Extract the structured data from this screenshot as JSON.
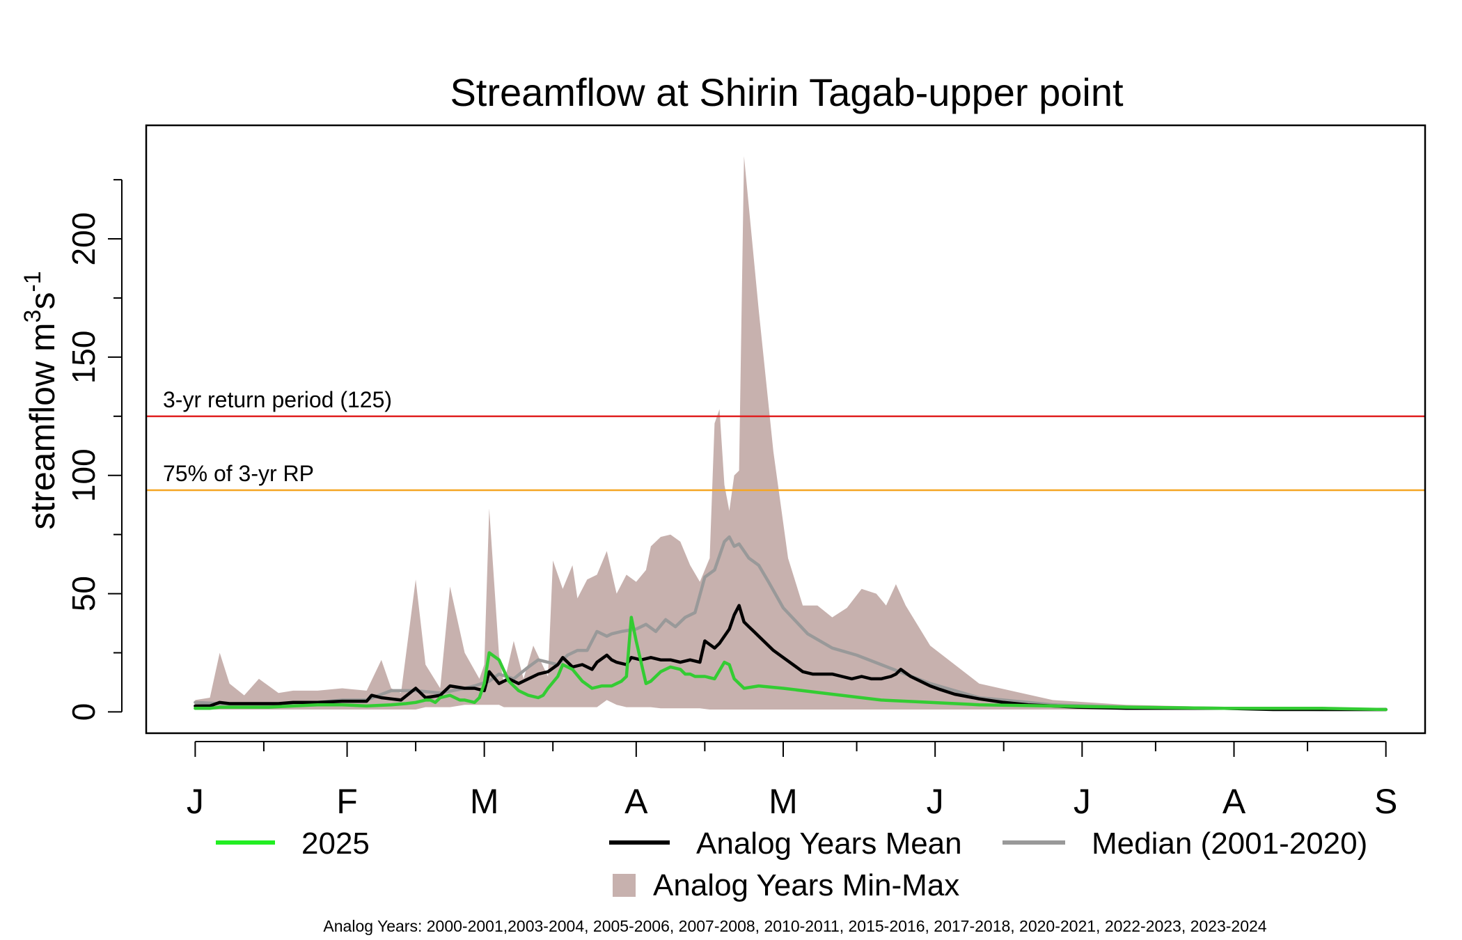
{
  "chart_data": {
    "type": "line",
    "title": "Streamflow at Shirin Tagab-upper point",
    "xlabel": "",
    "ylabel": "streamflow m",
    "ylabel_sup1": "3",
    "ylabel_mid": "s",
    "ylabel_sup2": "-1",
    "ylim": [
      -9,
      248
    ],
    "xlim": [
      -10,
      251
    ],
    "y_ticks": [
      0,
      50,
      100,
      150,
      200
    ],
    "y_tick_labels": [
      "0",
      "50",
      "100",
      "150",
      "200"
    ],
    "y_minor_ticks": [
      25,
      75,
      125,
      175,
      225
    ],
    "x_major_ticks": [
      {
        "day": 0,
        "label": "J"
      },
      {
        "day": 31,
        "label": "F"
      },
      {
        "day": 59,
        "label": "M"
      },
      {
        "day": 90,
        "label": "A"
      },
      {
        "day": 120,
        "label": "M"
      },
      {
        "day": 151,
        "label": "J"
      },
      {
        "day": 181,
        "label": "J"
      },
      {
        "day": 212,
        "label": "A"
      },
      {
        "day": 243,
        "label": "S"
      }
    ],
    "x_minor_ticks": [
      14,
      45,
      73,
      104,
      135,
      165,
      196,
      227
    ],
    "reference_lines": [
      {
        "name": "3-yr return period",
        "value": 125,
        "label": "3-yr return period (125)",
        "color": "#e02020"
      },
      {
        "name": "75% of 3-yr RP",
        "value": 93.75,
        "label": "75% of 3-yr RP",
        "color": "#f5a623"
      }
    ],
    "series": [
      {
        "name": "Analog Years Min-Max",
        "kind": "band",
        "color": "#c7b1ae",
        "x": [
          0,
          3,
          5,
          7,
          10,
          13,
          17,
          20,
          25,
          30,
          35,
          38,
          40,
          42,
          45,
          47,
          50,
          52,
          55,
          58,
          59,
          60,
          62,
          63,
          65,
          67,
          69,
          72,
          73,
          75,
          77,
          78,
          80,
          82,
          84,
          86,
          88,
          90,
          92,
          93,
          95,
          97,
          99,
          101,
          103,
          105,
          106,
          107,
          108,
          109,
          110,
          111,
          112,
          115,
          118,
          121,
          124,
          127,
          130,
          133,
          136,
          139,
          141,
          143,
          145,
          150,
          160,
          175,
          190,
          210,
          230,
          243
        ],
        "upper": [
          5,
          6,
          25,
          12,
          7,
          14,
          8,
          9,
          9,
          10,
          9,
          22,
          10,
          8,
          56,
          20,
          10,
          53,
          25,
          14,
          20,
          86,
          24,
          12,
          30,
          14,
          28,
          15,
          64,
          52,
          62,
          48,
          56,
          58,
          68,
          50,
          58,
          55,
          60,
          70,
          74,
          75,
          72,
          62,
          55,
          65,
          122,
          128,
          96,
          85,
          100,
          102,
          235,
          170,
          110,
          65,
          45,
          45,
          40,
          44,
          52,
          50,
          45,
          54,
          45,
          28,
          12,
          5,
          3,
          2,
          1.5,
          1
        ],
        "lower": [
          1,
          1,
          1,
          1,
          1,
          1,
          1,
          1,
          1,
          1,
          1,
          1,
          1,
          1,
          1,
          2,
          2,
          2,
          3,
          3,
          3,
          3,
          3,
          2,
          2,
          2,
          2,
          2,
          2,
          2,
          2,
          2,
          2,
          2,
          5,
          3,
          2,
          2,
          2,
          2,
          1.5,
          1.5,
          1.5,
          1.5,
          1.5,
          1,
          1,
          1,
          1,
          1,
          1,
          1,
          1,
          1,
          1,
          1,
          1,
          1,
          1,
          1,
          1,
          1,
          1,
          1,
          1,
          1,
          1,
          1,
          1,
          1,
          1,
          1
        ]
      },
      {
        "name": "Median (2001-2020)",
        "kind": "line",
        "color": "#999999",
        "x": [
          0,
          5,
          10,
          15,
          20,
          25,
          30,
          35,
          40,
          45,
          50,
          55,
          57,
          60,
          62,
          65,
          68,
          70,
          72,
          74,
          76,
          78,
          80,
          82,
          84,
          85,
          87,
          90,
          92,
          94,
          96,
          98,
          100,
          102,
          104,
          106,
          108,
          109,
          110,
          111,
          112,
          113,
          115,
          117,
          120,
          125,
          130,
          135,
          140,
          145,
          150,
          160,
          175,
          190,
          210,
          230,
          243
        ],
        "values": [
          4,
          3.5,
          3,
          3,
          3.5,
          4,
          5,
          5,
          9,
          9,
          8,
          10,
          11,
          13,
          16,
          14,
          19,
          22,
          21,
          20,
          24,
          26,
          26,
          34,
          32,
          33,
          34,
          35,
          37,
          34,
          39,
          36,
          40,
          42,
          57,
          60,
          72,
          74,
          70,
          71,
          68,
          65,
          62,
          55,
          44,
          33,
          27,
          24,
          20,
          16,
          12,
          6,
          3,
          2,
          1.5,
          1,
          1
        ]
      },
      {
        "name": "Analog Years Mean",
        "kind": "line",
        "color": "#000000",
        "x": [
          0,
          3,
          5,
          7,
          10,
          13,
          17,
          20,
          25,
          30,
          35,
          36,
          38,
          40,
          42,
          45,
          47,
          50,
          52,
          55,
          57,
          59,
          60,
          62,
          64,
          66,
          68,
          70,
          72,
          74,
          75,
          77,
          79,
          81,
          82,
          84,
          85,
          86,
          88,
          89,
          91,
          93,
          95,
          97,
          99,
          101,
          103,
          104,
          106,
          107,
          109,
          110,
          111,
          112,
          113,
          114,
          116,
          118,
          120,
          122,
          124,
          126,
          128,
          130,
          132,
          134,
          136,
          138,
          140,
          142,
          143,
          144,
          146,
          148,
          150,
          152,
          155,
          160,
          165,
          170,
          175,
          180,
          190,
          200,
          210,
          220,
          230,
          243
        ],
        "values": [
          2.5,
          2.5,
          4,
          3.5,
          3.5,
          3.5,
          3.5,
          4,
          4,
          4.5,
          4.5,
          7,
          6,
          5.5,
          5,
          10,
          6,
          7,
          11,
          10,
          10,
          9,
          17,
          12,
          14,
          12,
          14,
          16,
          17,
          20,
          23,
          19,
          20,
          18,
          21,
          24,
          22,
          21,
          20,
          23,
          22,
          23,
          22,
          22,
          21,
          22,
          21,
          30,
          27,
          29,
          35,
          41,
          45,
          38,
          36,
          34,
          30,
          26,
          23,
          20,
          17,
          16,
          16,
          16,
          15,
          14,
          15,
          14,
          14,
          15,
          16,
          18,
          15,
          13,
          11,
          9.5,
          7.5,
          5.5,
          4,
          3,
          2.5,
          2,
          1.5,
          1.5,
          1.5,
          1,
          1,
          1
        ]
      },
      {
        "name": "2025",
        "kind": "line",
        "color": "#33cc33",
        "legend_color": "#22ee22",
        "x": [
          0,
          3,
          5,
          10,
          15,
          20,
          25,
          30,
          35,
          40,
          43,
          45,
          47,
          48,
          49,
          50,
          52,
          54,
          55,
          57,
          58,
          59,
          60,
          62,
          64,
          66,
          68,
          70,
          71,
          72,
          74,
          75,
          77,
          79,
          81,
          83,
          85,
          86,
          87,
          88,
          89,
          90,
          92,
          93,
          95,
          97,
          99,
          100,
          101,
          102,
          104,
          106,
          108,
          109,
          110,
          112,
          115,
          120,
          130,
          140,
          150,
          160,
          175,
          190,
          210,
          230,
          243
        ],
        "values": [
          1.5,
          1.5,
          2,
          2,
          2,
          2.5,
          3,
          3,
          2.5,
          3,
          3.5,
          4,
          5,
          5,
          4,
          6,
          7,
          5,
          5,
          4,
          6,
          12,
          25,
          22,
          13,
          9,
          7,
          6,
          7,
          10,
          15,
          20,
          18,
          13,
          10,
          11,
          11,
          12,
          13,
          15,
          40,
          30,
          12,
          13,
          17,
          19,
          18,
          16,
          16,
          15,
          15,
          14,
          21,
          20,
          14,
          10,
          11,
          10,
          7.5,
          5,
          4,
          3,
          2.5,
          2,
          1.5,
          1.5,
          1
        ]
      }
    ],
    "legend": [
      {
        "name": "2025",
        "symbol": "line",
        "color": "#22ee22"
      },
      {
        "name": "Analog Years Mean",
        "symbol": "line",
        "color": "#000000"
      },
      {
        "name": "Median (2001-2020)",
        "symbol": "line",
        "color": "#999999"
      },
      {
        "name": "Analog Years Min-Max",
        "symbol": "box",
        "color": "#c7b1ae"
      }
    ],
    "footnote": "Analog Years: 2000-2001,2003-2004, 2005-2006, 2007-2008, 2010-2011, 2015-2016, 2017-2018, 2020-2021, 2022-2023, 2023-2024"
  }
}
